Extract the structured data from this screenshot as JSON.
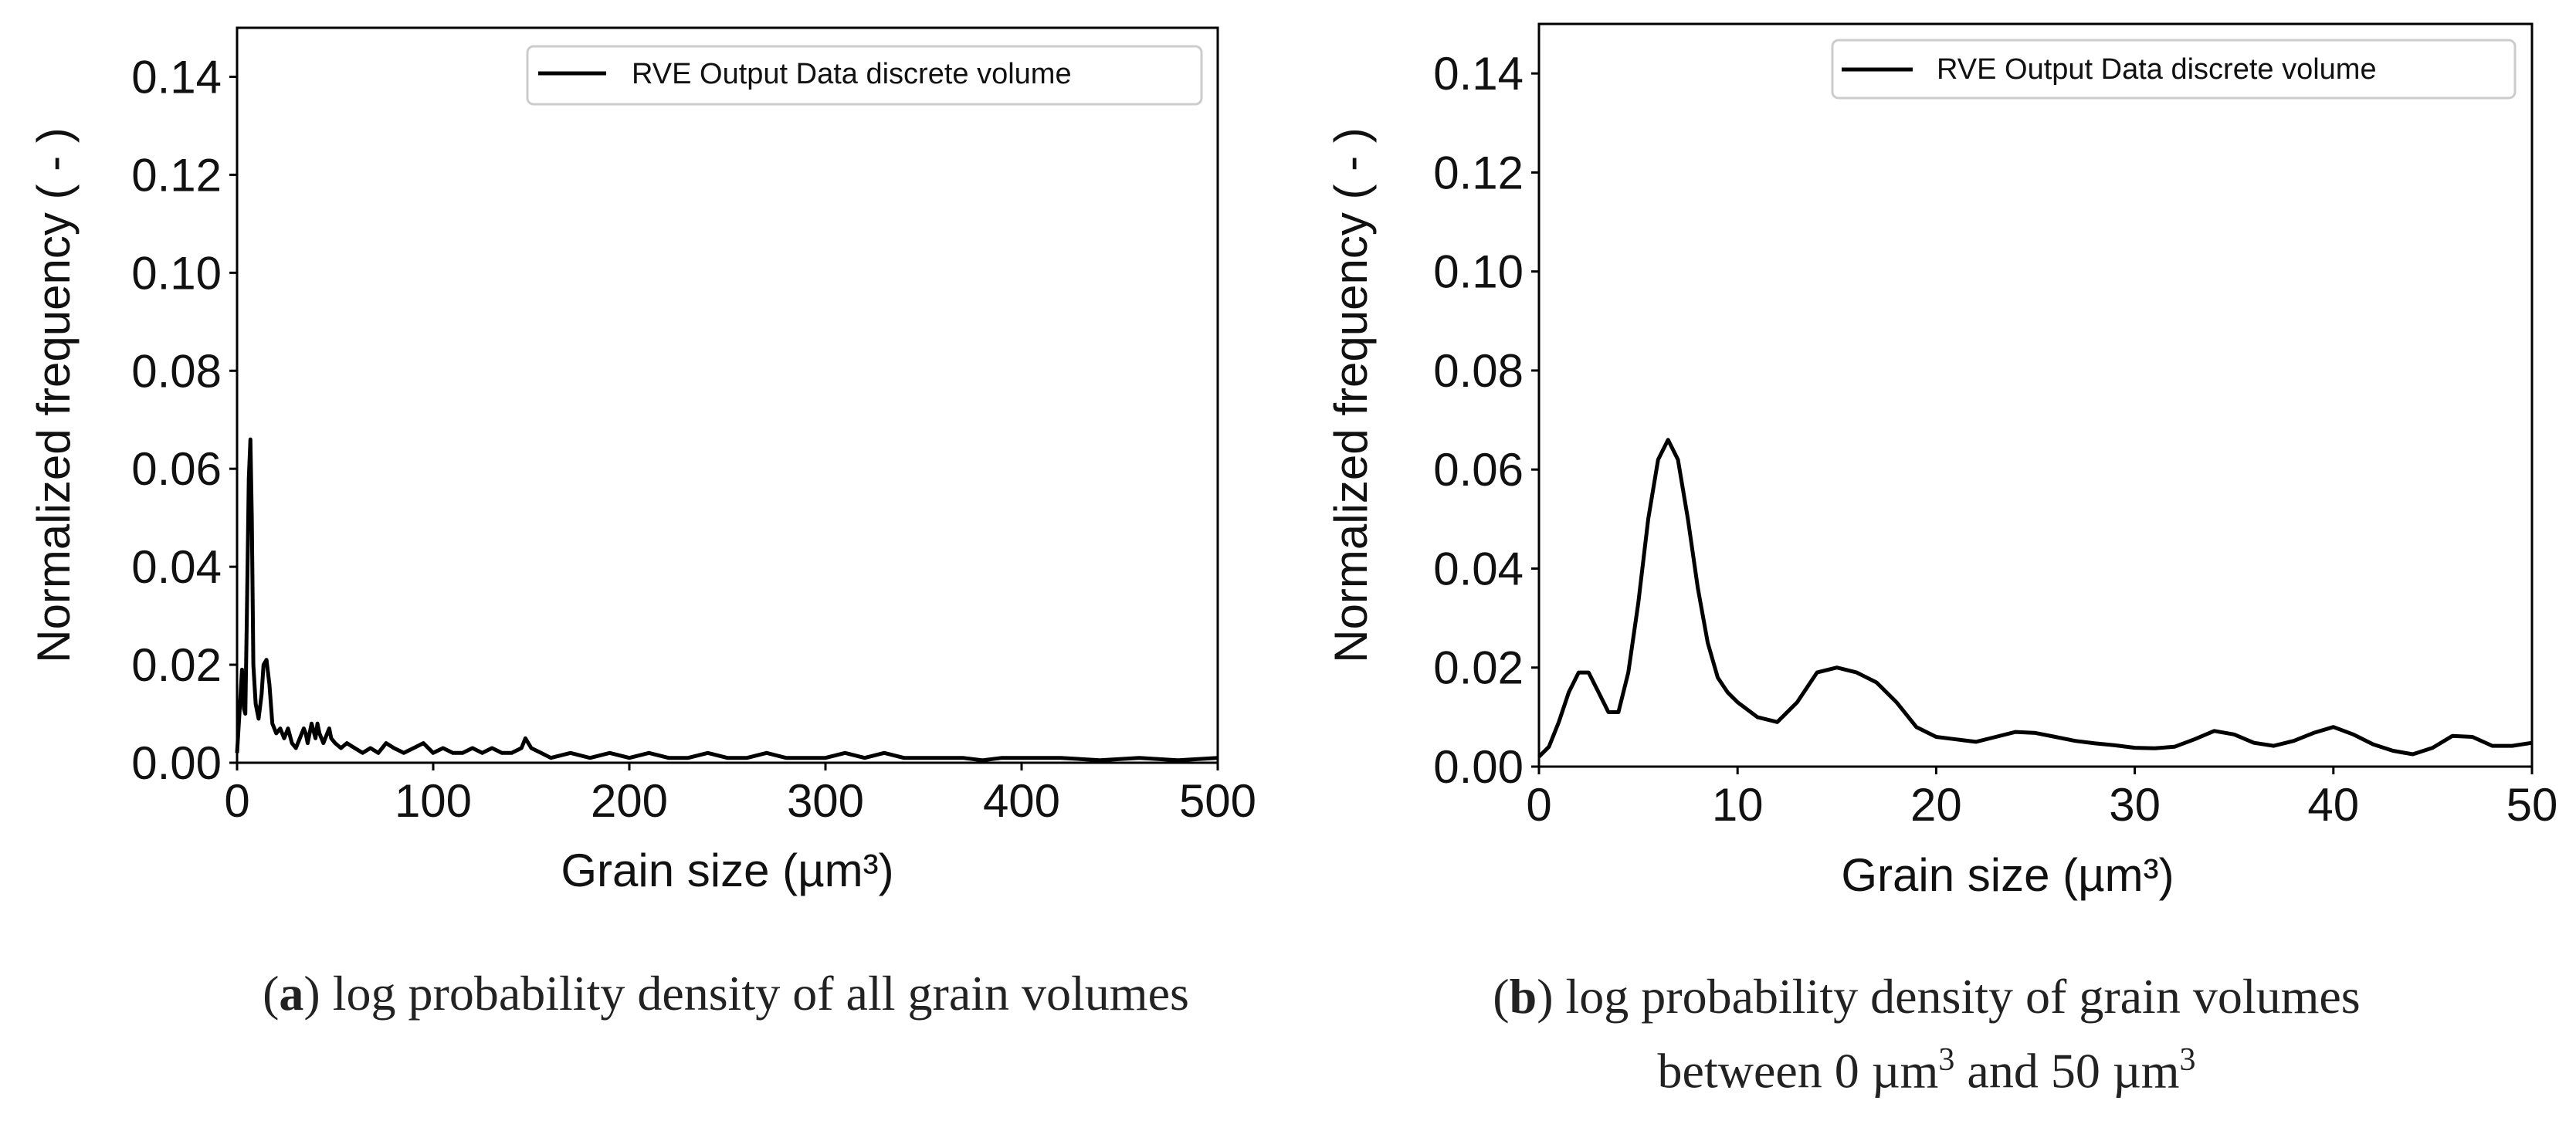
{
  "chart_data": [
    {
      "type": "line",
      "panel": "a",
      "caption_letter": "a",
      "caption_text": " log probability density of all grain volumes",
      "xlabel": "Grain size (µm³)",
      "ylabel": "Normalized frequency ( - )",
      "xlim": [
        0,
        500
      ],
      "ylim": [
        0,
        0.15
      ],
      "xticks": [
        "0",
        "100",
        "200",
        "300",
        "400",
        "500"
      ],
      "xtick_values": [
        0,
        100,
        200,
        300,
        400,
        500
      ],
      "yticks": [
        "0.00",
        "0.02",
        "0.04",
        "0.06",
        "0.08",
        "0.10",
        "0.12",
        "0.14"
      ],
      "ytick_values": [
        0,
        0.02,
        0.04,
        0.06,
        0.08,
        0.1,
        0.12,
        0.14
      ],
      "legend": "RVE Output Data discrete volume",
      "legend_position": "top-right",
      "series": [
        {
          "name": "RVE Output Data discrete volume",
          "x": [
            0,
            1.5,
            2.5,
            3.5,
            4.2,
            5,
            6,
            6.8,
            7.5,
            8.3,
            9.5,
            11,
            12.5,
            13.5,
            15,
            16.5,
            18,
            20,
            22,
            24,
            26,
            28,
            30,
            32,
            34,
            35,
            36,
            38,
            40,
            41,
            42,
            44,
            46,
            47,
            48,
            50,
            53,
            56,
            60,
            64,
            68,
            72,
            76,
            80,
            85,
            90,
            95,
            100,
            105,
            110,
            115,
            120,
            125,
            130,
            135,
            140,
            145,
            147,
            150,
            155,
            160,
            170,
            180,
            190,
            200,
            210,
            220,
            230,
            240,
            250,
            260,
            270,
            280,
            290,
            300,
            310,
            320,
            330,
            340,
            350,
            360,
            370,
            380,
            390,
            400,
            420,
            440,
            460,
            480,
            500
          ],
          "y": [
            0.002,
            0.012,
            0.019,
            0.011,
            0.01,
            0.03,
            0.058,
            0.066,
            0.05,
            0.02,
            0.012,
            0.009,
            0.014,
            0.02,
            0.021,
            0.016,
            0.008,
            0.006,
            0.007,
            0.005,
            0.007,
            0.004,
            0.003,
            0.005,
            0.007,
            0.006,
            0.004,
            0.008,
            0.005,
            0.008,
            0.006,
            0.004,
            0.006,
            0.007,
            0.005,
            0.004,
            0.003,
            0.004,
            0.003,
            0.002,
            0.003,
            0.002,
            0.004,
            0.003,
            0.002,
            0.003,
            0.004,
            0.002,
            0.003,
            0.002,
            0.002,
            0.003,
            0.002,
            0.003,
            0.002,
            0.002,
            0.003,
            0.005,
            0.003,
            0.002,
            0.001,
            0.002,
            0.001,
            0.002,
            0.001,
            0.002,
            0.001,
            0.001,
            0.002,
            0.001,
            0.001,
            0.002,
            0.001,
            0.001,
            0.001,
            0.002,
            0.001,
            0.002,
            0.001,
            0.001,
            0.001,
            0.001,
            0.0005,
            0.001,
            0.001,
            0.001,
            0.0005,
            0.001,
            0.0005,
            0.001
          ]
        }
      ]
    },
    {
      "type": "line",
      "panel": "b",
      "caption_letter": "b",
      "caption_text": " log probability density of grain volumes",
      "caption_line2_a": "between 0 µm",
      "caption_line2_b": " and 50 µm",
      "caption_exp": "3",
      "xlabel": "Grain size (µm³)",
      "ylabel": "Normalized frequency ( - )",
      "xlim": [
        0,
        50
      ],
      "ylim": [
        0,
        0.15
      ],
      "xticks": [
        "0",
        "10",
        "20",
        "30",
        "40",
        "50"
      ],
      "xtick_values": [
        0,
        10,
        20,
        30,
        40,
        50
      ],
      "yticks": [
        "0.00",
        "0.02",
        "0.04",
        "0.06",
        "0.08",
        "0.10",
        "0.12",
        "0.14"
      ],
      "ytick_values": [
        0,
        0.02,
        0.04,
        0.06,
        0.08,
        0.1,
        0.12,
        0.14
      ],
      "legend": "RVE Output Data discrete volume",
      "legend_position": "top-right",
      "series": [
        {
          "name": "RVE Output Data discrete volume",
          "x": [
            0,
            0.5,
            1,
            1.5,
            2,
            2.5,
            3,
            3.5,
            4,
            4.5,
            5,
            5.5,
            6,
            6.5,
            7,
            7.5,
            8,
            8.5,
            9,
            9.5,
            10,
            11,
            12,
            13,
            14,
            15,
            16,
            17,
            18,
            19,
            20,
            21,
            22,
            23,
            24,
            25,
            26,
            27,
            28,
            29,
            30,
            31,
            32,
            33,
            34,
            35,
            36,
            37,
            38,
            39,
            40,
            41,
            42,
            43,
            44,
            45,
            46,
            47,
            48,
            49,
            50
          ],
          "y": [
            0.002,
            0.004,
            0.009,
            0.015,
            0.019,
            0.019,
            0.015,
            0.011,
            0.011,
            0.019,
            0.033,
            0.05,
            0.062,
            0.066,
            0.062,
            0.05,
            0.036,
            0.025,
            0.018,
            0.015,
            0.013,
            0.01,
            0.009,
            0.013,
            0.019,
            0.02,
            0.019,
            0.017,
            0.013,
            0.008,
            0.006,
            0.0055,
            0.005,
            0.006,
            0.007,
            0.0068,
            0.006,
            0.0052,
            0.0047,
            0.0043,
            0.0038,
            0.0037,
            0.004,
            0.0055,
            0.0072,
            0.0065,
            0.0048,
            0.0042,
            0.0052,
            0.0068,
            0.008,
            0.0065,
            0.0045,
            0.0032,
            0.0025,
            0.0038,
            0.0062,
            0.006,
            0.0042,
            0.0042,
            0.0048
          ]
        }
      ]
    }
  ]
}
